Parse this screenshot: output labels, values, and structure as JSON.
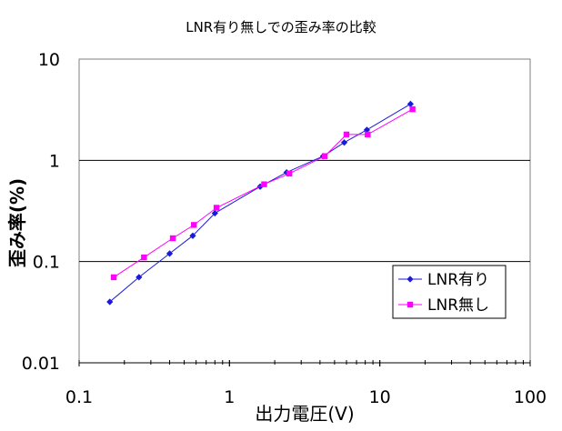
{
  "chart_data": {
    "type": "line",
    "title": "LNR有り無しでの歪み率の比較",
    "xlabel": "出力電圧(V)",
    "ylabel": "歪み率(%)",
    "x_scale": "log",
    "y_scale": "log",
    "xlim": [
      0.1,
      100
    ],
    "ylim": [
      0.01,
      10
    ],
    "x_ticks": [
      "0.1",
      "1",
      "10",
      "100"
    ],
    "y_ticks": [
      "0.01",
      "0.1",
      "1",
      "10"
    ],
    "grid": "horizontal major gridlines",
    "legend_position": "bottom-right",
    "series": [
      {
        "name": "LNR有り",
        "color": "#1a1ad8",
        "marker": "diamond",
        "points": [
          [
            0.16,
            0.04
          ],
          [
            0.25,
            0.07
          ],
          [
            0.4,
            0.12
          ],
          [
            0.57,
            0.18
          ],
          [
            0.8,
            0.3
          ],
          [
            1.6,
            0.55
          ],
          [
            2.4,
            0.76
          ],
          [
            4.2,
            1.1
          ],
          [
            5.8,
            1.5
          ],
          [
            8.2,
            2.0
          ],
          [
            16.0,
            3.6
          ]
        ]
      },
      {
        "name": "LNR無し",
        "color": "#ff00ff",
        "marker": "square",
        "points": [
          [
            0.17,
            0.07
          ],
          [
            0.27,
            0.11
          ],
          [
            0.42,
            0.17
          ],
          [
            0.58,
            0.23
          ],
          [
            0.82,
            0.34
          ],
          [
            1.7,
            0.58
          ],
          [
            2.5,
            0.74
          ],
          [
            4.3,
            1.1
          ],
          [
            6.0,
            1.8
          ],
          [
            8.3,
            1.8
          ],
          [
            16.5,
            3.2
          ]
        ]
      }
    ]
  }
}
